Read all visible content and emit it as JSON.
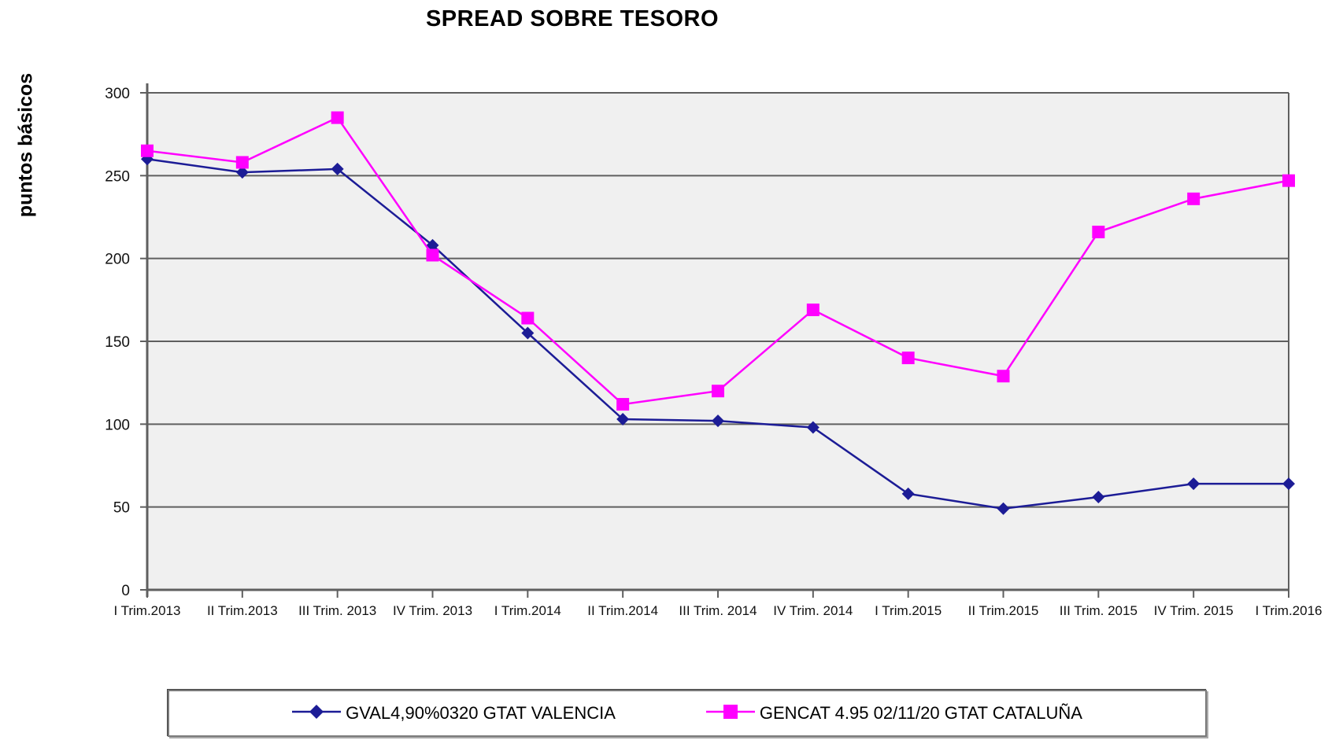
{
  "chart_data": {
    "type": "line",
    "title": "SPREAD SOBRE TESORO",
    "xlabel": "",
    "ylabel": "puntos básicos",
    "ylim": [
      0,
      300
    ],
    "ytick_step": 50,
    "grid": true,
    "plot_background": "#f0f0f0",
    "gridline_color": "#5f5f5f",
    "legend_position": "bottom",
    "categories": [
      "I Trim.2013",
      "II Trim.2013",
      "III Trim. 2013",
      "IV Trim. 2013",
      "I Trim.2014",
      "II Trim.2014",
      "III Trim. 2014",
      "IV Trim. 2014",
      "I Trim.2015",
      "II Trim.2015",
      "III Trim. 2015",
      "IV Trim. 2015",
      "I Trim.2016"
    ],
    "series": [
      {
        "name": "GVAL4,90%0320 GTAT VALENCIA",
        "color": "#1c1c96",
        "marker": "diamond",
        "values": [
          260,
          252,
          254,
          208,
          155,
          103,
          102,
          98,
          58,
          49,
          56,
          64,
          64
        ]
      },
      {
        "name": "GENCAT 4.95 02/11/20 GTAT CATALUÑA",
        "color": "#ff00ff",
        "marker": "square",
        "values": [
          265,
          258,
          285,
          202,
          164,
          112,
          120,
          169,
          140,
          129,
          216,
          236,
          247
        ]
      }
    ]
  }
}
